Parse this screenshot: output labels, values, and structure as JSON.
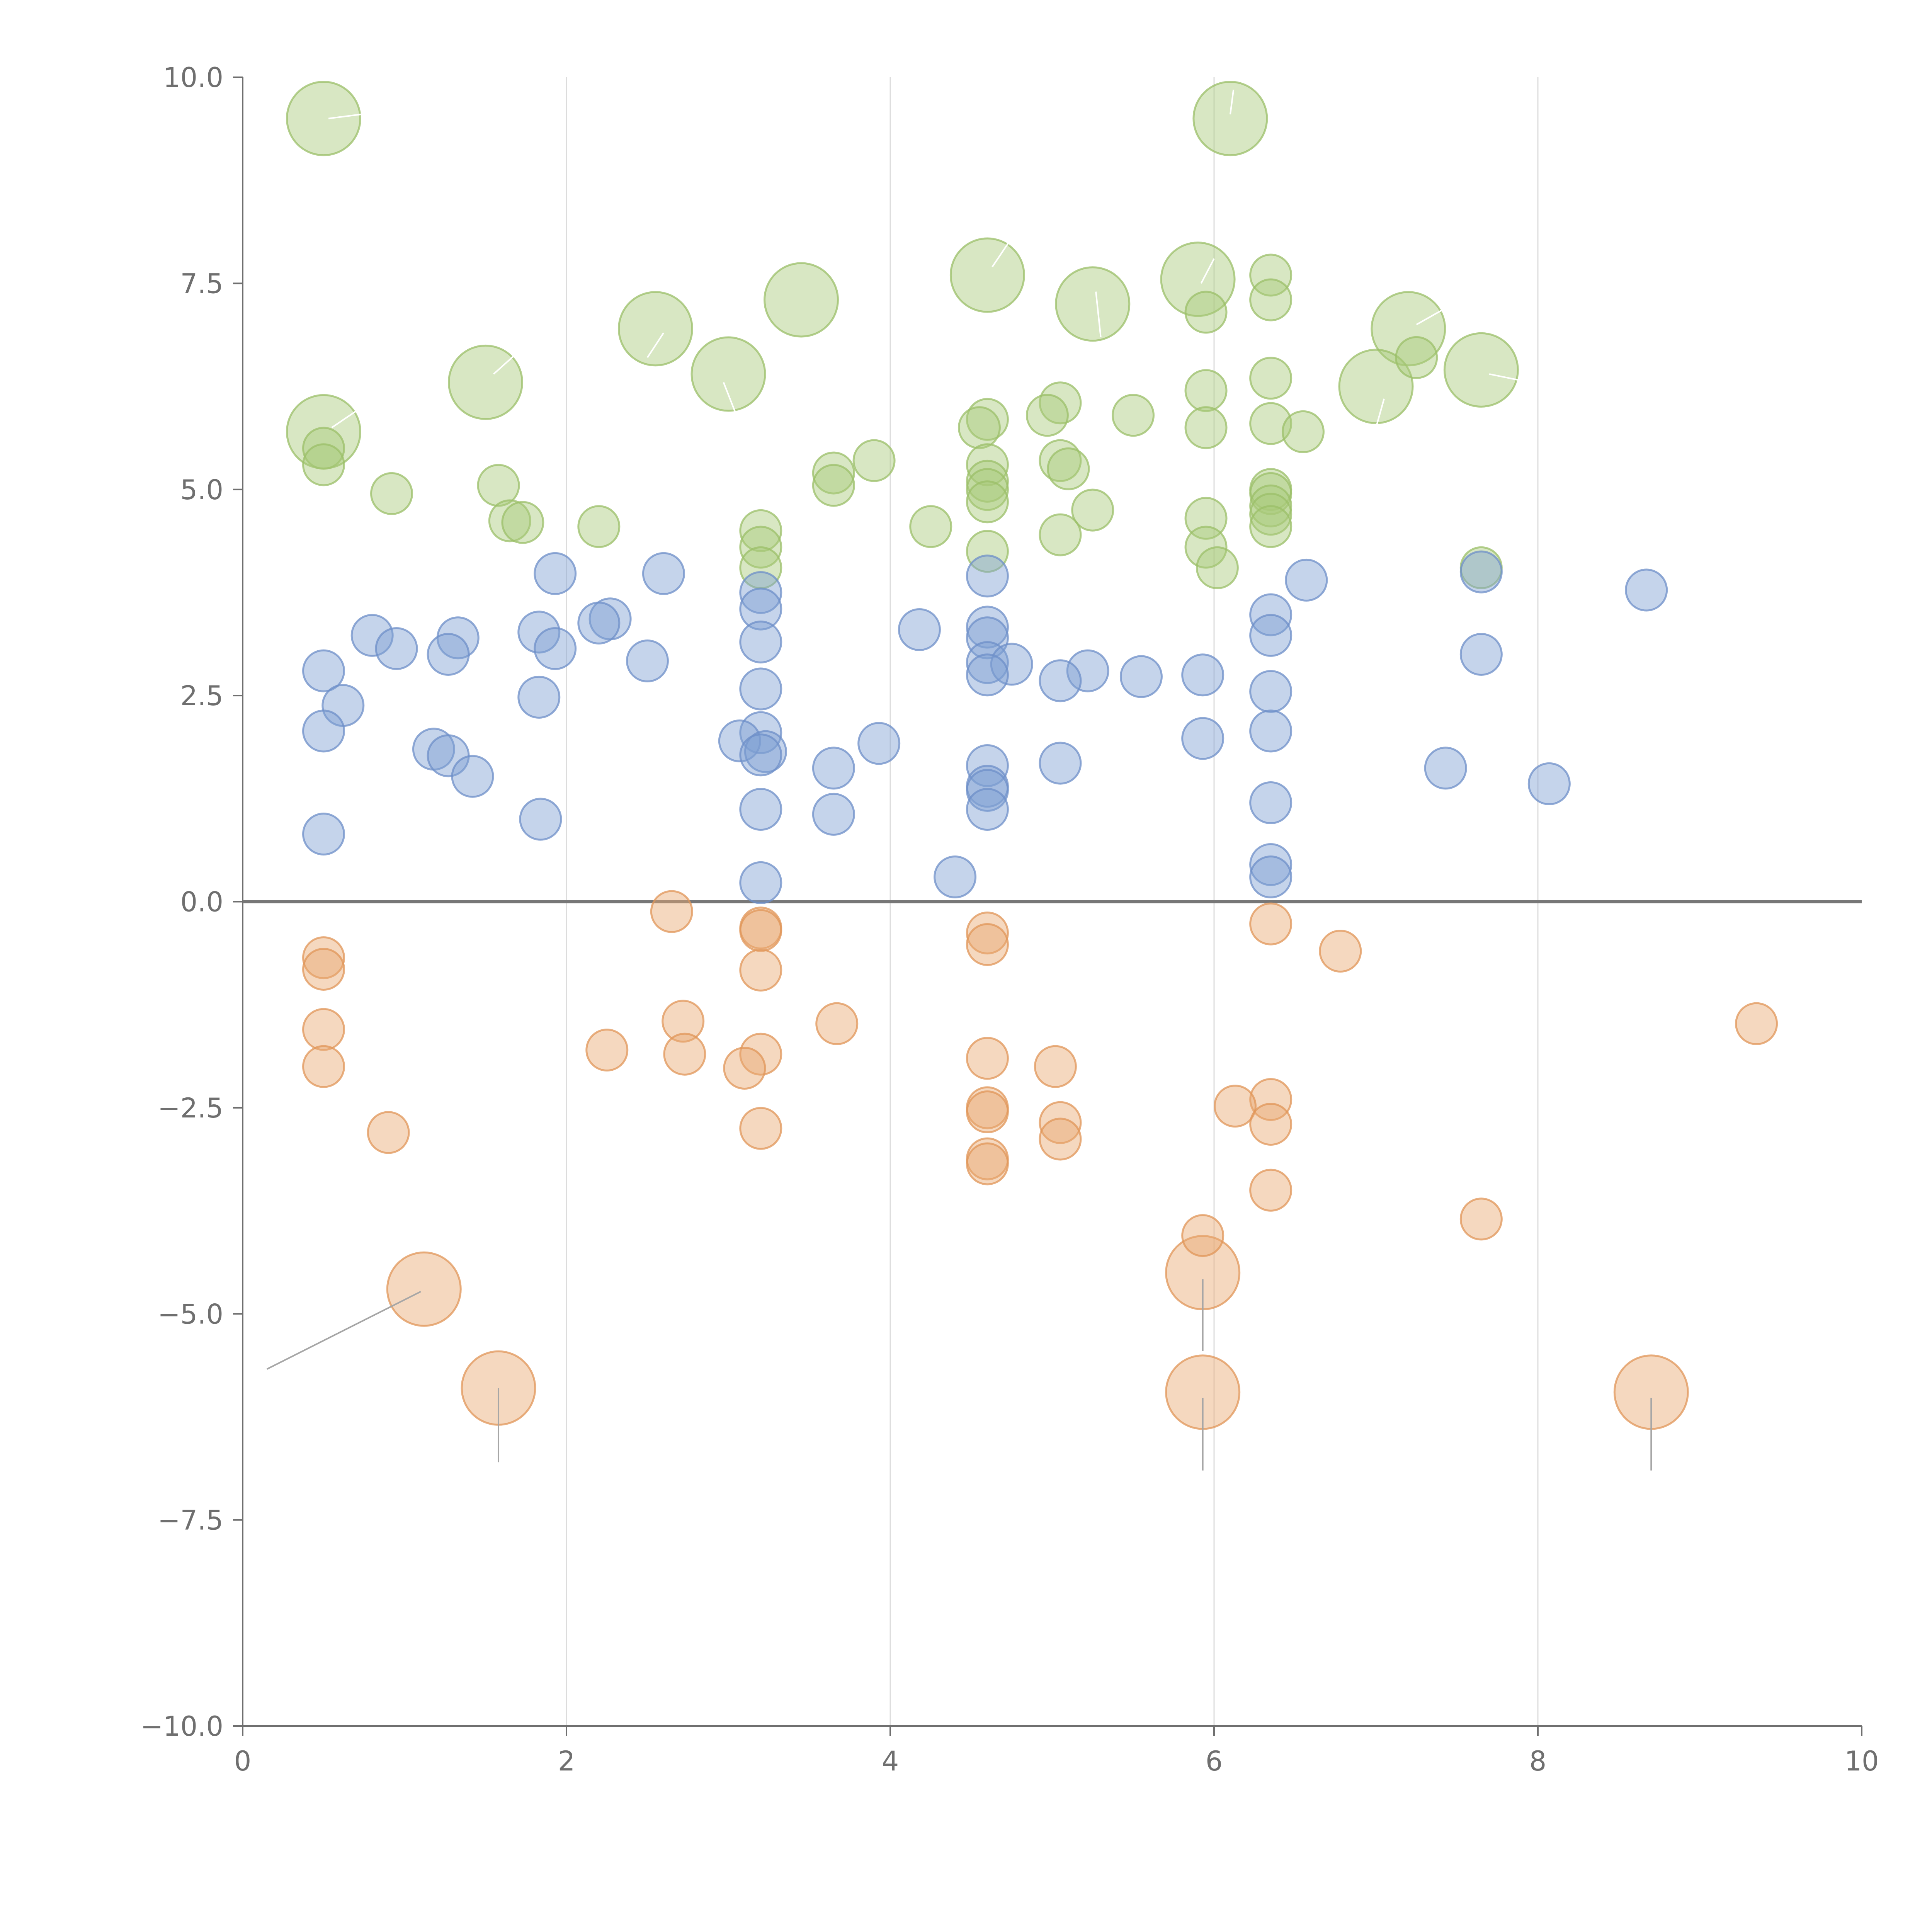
{
  "colors": {
    "green": "#a9c97a",
    "green_stroke": "#9bbf68",
    "blue": "#7f9fd2",
    "blue_stroke": "#6d8fc8",
    "orange": "#e9a872",
    "orange_stroke": "#e09558",
    "axis": "#6f6f6f",
    "grid": "#dcdcdc",
    "leader_light": "#ffffff",
    "leader_dark": "#a6a6a6"
  },
  "chart_data": {
    "type": "scatter",
    "title": "",
    "xlabel": "",
    "ylabel": "",
    "xlim": [
      0,
      10
    ],
    "ylim": [
      -10,
      10
    ],
    "x_ticks": [
      "0",
      "2",
      "4",
      "6",
      "8",
      "10"
    ],
    "y_ticks": [
      "10.0",
      "7.5",
      "5.0",
      "2.5",
      "0.0",
      "−2.5",
      "−5.0",
      "−7.5",
      "−10.0"
    ],
    "grid": "vertical gridlines at x = 2, 4, 6, 8; horizontal line at y = 0",
    "legend": "none",
    "series": [
      {
        "color": "green",
        "points": [
          {
            "x": 0.5,
            "y": 9.5,
            "large": true
          },
          {
            "x": 6.1,
            "y": 9.5,
            "large": true
          },
          {
            "x": 4.6,
            "y": 7.6,
            "large": true
          },
          {
            "x": 5.9,
            "y": 7.55,
            "large": true
          },
          {
            "x": 3.45,
            "y": 7.3,
            "large": true
          },
          {
            "x": 5.25,
            "y": 7.25,
            "large": true
          },
          {
            "x": 2.55,
            "y": 6.95,
            "large": true
          },
          {
            "x": 7.2,
            "y": 6.95,
            "large": true
          },
          {
            "x": 7.65,
            "y": 6.45,
            "large": true
          },
          {
            "x": 3.0,
            "y": 6.4,
            "large": true
          },
          {
            "x": 1.5,
            "y": 6.3,
            "large": true
          },
          {
            "x": 7.0,
            "y": 6.25,
            "large": true
          },
          {
            "x": 0.5,
            "y": 5.7,
            "large": true
          },
          {
            "x": 6.35,
            "y": 7.6
          },
          {
            "x": 6.35,
            "y": 7.3
          },
          {
            "x": 5.95,
            "y": 7.15
          },
          {
            "x": 7.25,
            "y": 6.6
          },
          {
            "x": 6.35,
            "y": 6.35
          },
          {
            "x": 5.95,
            "y": 6.2
          },
          {
            "x": 5.05,
            "y": 6.05
          },
          {
            "x": 5.5,
            "y": 5.9
          },
          {
            "x": 4.6,
            "y": 5.85
          },
          {
            "x": 4.97,
            "y": 5.9
          },
          {
            "x": 4.55,
            "y": 5.75
          },
          {
            "x": 6.35,
            "y": 5.8
          },
          {
            "x": 5.95,
            "y": 5.75
          },
          {
            "x": 6.55,
            "y": 5.7
          },
          {
            "x": 0.5,
            "y": 5.5
          },
          {
            "x": 3.9,
            "y": 5.35
          },
          {
            "x": 5.05,
            "y": 5.35
          },
          {
            "x": 5.1,
            "y": 5.25
          },
          {
            "x": 4.6,
            "y": 5.3
          },
          {
            "x": 0.5,
            "y": 5.3
          },
          {
            "x": 3.65,
            "y": 5.2
          },
          {
            "x": 3.65,
            "y": 5.05
          },
          {
            "x": 1.58,
            "y": 5.05
          },
          {
            "x": 4.6,
            "y": 5.1
          },
          {
            "x": 6.35,
            "y": 5.0
          },
          {
            "x": 4.6,
            "y": 5.0
          },
          {
            "x": 0.92,
            "y": 4.95
          },
          {
            "x": 6.35,
            "y": 4.95
          },
          {
            "x": 6.35,
            "y": 4.8
          },
          {
            "x": 4.6,
            "y": 4.85
          },
          {
            "x": 5.25,
            "y": 4.75
          },
          {
            "x": 6.35,
            "y": 4.7
          },
          {
            "x": 5.95,
            "y": 4.65
          },
          {
            "x": 1.65,
            "y": 4.62
          },
          {
            "x": 1.73,
            "y": 4.6
          },
          {
            "x": 2.2,
            "y": 4.55
          },
          {
            "x": 4.25,
            "y": 4.55
          },
          {
            "x": 6.35,
            "y": 4.55
          },
          {
            "x": 3.2,
            "y": 4.5
          },
          {
            "x": 5.05,
            "y": 4.45
          },
          {
            "x": 3.2,
            "y": 4.3
          },
          {
            "x": 5.95,
            "y": 4.3
          },
          {
            "x": 4.6,
            "y": 4.25
          },
          {
            "x": 3.2,
            "y": 4.05
          },
          {
            "x": 6.02,
            "y": 4.05
          },
          {
            "x": 7.65,
            "y": 4.05
          }
        ]
      },
      {
        "color": "blue",
        "points": [
          {
            "x": 7.65,
            "y": 4.0
          },
          {
            "x": 1.93,
            "y": 3.98
          },
          {
            "x": 2.6,
            "y": 3.98
          },
          {
            "x": 4.6,
            "y": 3.95
          },
          {
            "x": 6.57,
            "y": 3.9
          },
          {
            "x": 8.67,
            "y": 3.78
          },
          {
            "x": 3.2,
            "y": 3.75
          },
          {
            "x": 3.2,
            "y": 3.55
          },
          {
            "x": 6.35,
            "y": 3.48
          },
          {
            "x": 2.27,
            "y": 3.43
          },
          {
            "x": 2.2,
            "y": 3.38
          },
          {
            "x": 4.6,
            "y": 3.33
          },
          {
            "x": 4.18,
            "y": 3.3
          },
          {
            "x": 1.83,
            "y": 3.27
          },
          {
            "x": 0.8,
            "y": 3.23
          },
          {
            "x": 6.35,
            "y": 3.23
          },
          {
            "x": 1.33,
            "y": 3.2
          },
          {
            "x": 4.6,
            "y": 3.2
          },
          {
            "x": 3.2,
            "y": 3.15
          },
          {
            "x": 0.95,
            "y": 3.07
          },
          {
            "x": 1.93,
            "y": 3.07
          },
          {
            "x": 1.27,
            "y": 3.0
          },
          {
            "x": 7.65,
            "y": 3.0
          },
          {
            "x": 2.5,
            "y": 2.92
          },
          {
            "x": 4.6,
            "y": 2.9
          },
          {
            "x": 4.75,
            "y": 2.88
          },
          {
            "x": 0.5,
            "y": 2.8
          },
          {
            "x": 5.22,
            "y": 2.8
          },
          {
            "x": 4.6,
            "y": 2.75
          },
          {
            "x": 5.93,
            "y": 2.75
          },
          {
            "x": 5.55,
            "y": 2.73
          },
          {
            "x": 5.05,
            "y": 2.68
          },
          {
            "x": 3.2,
            "y": 2.58
          },
          {
            "x": 6.35,
            "y": 2.55
          },
          {
            "x": 1.83,
            "y": 2.48
          },
          {
            "x": 0.62,
            "y": 2.38
          },
          {
            "x": 0.5,
            "y": 2.07
          },
          {
            "x": 6.35,
            "y": 2.07
          },
          {
            "x": 3.2,
            "y": 2.05
          },
          {
            "x": 5.93,
            "y": 1.98
          },
          {
            "x": 3.07,
            "y": 1.95
          },
          {
            "x": 3.93,
            "y": 1.92
          },
          {
            "x": 1.18,
            "y": 1.85
          },
          {
            "x": 3.23,
            "y": 1.82
          },
          {
            "x": 3.2,
            "y": 1.78
          },
          {
            "x": 1.27,
            "y": 1.77
          },
          {
            "x": 5.05,
            "y": 1.68
          },
          {
            "x": 4.6,
            "y": 1.65
          },
          {
            "x": 3.65,
            "y": 1.62
          },
          {
            "x": 7.43,
            "y": 1.62
          },
          {
            "x": 1.42,
            "y": 1.52
          },
          {
            "x": 8.07,
            "y": 1.43
          },
          {
            "x": 4.6,
            "y": 1.4
          },
          {
            "x": 4.6,
            "y": 1.35
          },
          {
            "x": 6.35,
            "y": 1.2
          },
          {
            "x": 3.2,
            "y": 1.12
          },
          {
            "x": 4.6,
            "y": 1.12
          },
          {
            "x": 3.65,
            "y": 1.06
          },
          {
            "x": 1.84,
            "y": 1.0
          },
          {
            "x": 0.5,
            "y": 0.82
          },
          {
            "x": 6.35,
            "y": 0.45
          },
          {
            "x": 6.35,
            "y": 0.3
          },
          {
            "x": 4.4,
            "y": 0.3
          },
          {
            "x": 3.2,
            "y": 0.23
          }
        ]
      },
      {
        "color": "orange",
        "points": [
          {
            "x": 1.12,
            "y": -4.7,
            "large": true
          },
          {
            "x": 1.58,
            "y": -5.9,
            "large": true
          },
          {
            "x": 5.93,
            "y": -4.5,
            "large": true
          },
          {
            "x": 5.93,
            "y": -5.95,
            "large": true
          },
          {
            "x": 8.7,
            "y": -5.95,
            "large": true
          },
          {
            "x": 2.65,
            "y": -0.12
          },
          {
            "x": 6.35,
            "y": -0.27
          },
          {
            "x": 3.2,
            "y": -0.32
          },
          {
            "x": 3.2,
            "y": -0.35
          },
          {
            "x": 4.6,
            "y": -0.38
          },
          {
            "x": 4.6,
            "y": -0.52
          },
          {
            "x": 6.78,
            "y": -0.6
          },
          {
            "x": 0.5,
            "y": -0.68
          },
          {
            "x": 0.5,
            "y": -0.82
          },
          {
            "x": 3.2,
            "y": -0.83
          },
          {
            "x": 2.72,
            "y": -1.45
          },
          {
            "x": 3.67,
            "y": -1.48
          },
          {
            "x": 9.35,
            "y": -1.48
          },
          {
            "x": 0.5,
            "y": -1.55
          },
          {
            "x": 2.25,
            "y": -1.8
          },
          {
            "x": 2.73,
            "y": -1.85
          },
          {
            "x": 3.2,
            "y": -1.85
          },
          {
            "x": 4.6,
            "y": -1.9
          },
          {
            "x": 0.5,
            "y": -2.0
          },
          {
            "x": 5.02,
            "y": -2.0
          },
          {
            "x": 3.1,
            "y": -2.02
          },
          {
            "x": 6.35,
            "y": -2.4
          },
          {
            "x": 6.13,
            "y": -2.48
          },
          {
            "x": 4.6,
            "y": -2.5
          },
          {
            "x": 4.6,
            "y": -2.55
          },
          {
            "x": 5.05,
            "y": -2.68
          },
          {
            "x": 6.35,
            "y": -2.7
          },
          {
            "x": 3.2,
            "y": -2.75
          },
          {
            "x": 0.9,
            "y": -2.8
          },
          {
            "x": 5.05,
            "y": -2.88
          },
          {
            "x": 4.6,
            "y": -3.12
          },
          {
            "x": 4.6,
            "y": -3.18
          },
          {
            "x": 6.35,
            "y": -3.5
          },
          {
            "x": 7.65,
            "y": -3.85
          },
          {
            "x": 5.93,
            "y": -4.05
          }
        ]
      }
    ]
  },
  "leaders": [
    {
      "color": "leader_light",
      "x1": 0.53,
      "y1": 9.5,
      "x2": 0.73,
      "y2": 9.55
    },
    {
      "color": "leader_light",
      "x1": 1.55,
      "y1": 6.4,
      "x2": 1.72,
      "y2": 6.7
    },
    {
      "color": "leader_light",
      "x1": 2.5,
      "y1": 6.6,
      "x2": 2.6,
      "y2": 6.9
    },
    {
      "color": "leader_light",
      "x1": 3.05,
      "y1": 5.9,
      "x2": 2.97,
      "y2": 6.3
    },
    {
      "color": "leader_light",
      "x1": 4.63,
      "y1": 7.7,
      "x2": 4.75,
      "y2": 8.05
    },
    {
      "color": "leader_light",
      "x1": 5.27,
      "y1": 7.4,
      "x2": 5.3,
      "y2": 6.85
    },
    {
      "color": "leader_light",
      "x1": 5.92,
      "y1": 7.5,
      "x2": 6.0,
      "y2": 7.8
    },
    {
      "color": "leader_light",
      "x1": 6.1,
      "y1": 9.55,
      "x2": 6.12,
      "y2": 9.85
    },
    {
      "color": "leader_light",
      "x1": 7.25,
      "y1": 7.0,
      "x2": 7.43,
      "y2": 7.2
    },
    {
      "color": "leader_light",
      "x1": 7.7,
      "y1": 6.4,
      "x2": 7.95,
      "y2": 6.3
    },
    {
      "color": "leader_light",
      "x1": 7.05,
      "y1": 6.1,
      "x2": 7.0,
      "y2": 5.75
    },
    {
      "color": "leader_light",
      "x1": 0.55,
      "y1": 5.75,
      "x2": 0.7,
      "y2": 5.95
    },
    {
      "color": "leader_dark",
      "x1": 1.1,
      "y1": -4.73,
      "x2": 0.15,
      "y2": -5.67
    },
    {
      "color": "leader_dark",
      "x1": 1.58,
      "y1": -5.9,
      "x2": 1.58,
      "y2": -6.8
    },
    {
      "color": "leader_dark",
      "x1": 5.93,
      "y1": -4.58,
      "x2": 5.93,
      "y2": -5.45
    },
    {
      "color": "leader_dark",
      "x1": 5.93,
      "y1": -6.02,
      "x2": 5.93,
      "y2": -6.9
    },
    {
      "color": "leader_dark",
      "x1": 8.7,
      "y1": -6.02,
      "x2": 8.7,
      "y2": -6.9
    }
  ]
}
